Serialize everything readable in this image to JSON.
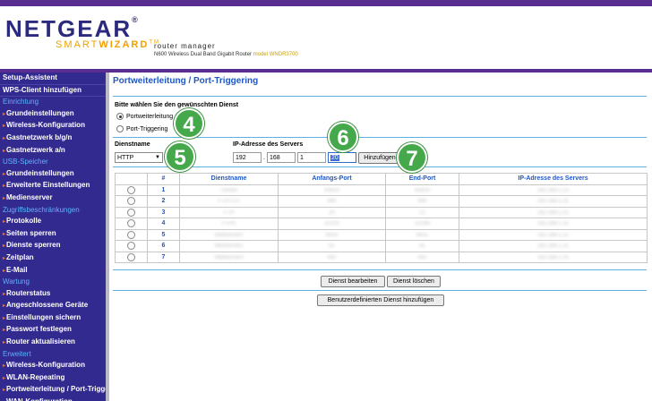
{
  "header": {
    "brand": "NETGEAR",
    "brand_tm": "®",
    "subbrand_smart": "SMART",
    "subbrand_wizard": "WIZARD",
    "subbrand_tm": "TM",
    "app_name": "router manager",
    "device": "N600 Wireless Dual Band Gigabit Router",
    "model_label": "model WNDR3700"
  },
  "sidebar": [
    {
      "kind": "top",
      "label": "Setup-Assistent"
    },
    {
      "kind": "top",
      "label": "WPS-Client hinzufügen"
    },
    {
      "kind": "section",
      "label": "Einrichtung"
    },
    {
      "kind": "sub",
      "label": "Grundeinstellungen"
    },
    {
      "kind": "sub",
      "label": "Wireless-Konfiguration"
    },
    {
      "kind": "sub",
      "label": "Gastnetzwerk b/g/n"
    },
    {
      "kind": "sub",
      "label": "Gastnetzwerk a/n"
    },
    {
      "kind": "section",
      "label": "USB-Speicher"
    },
    {
      "kind": "sub",
      "label": "Grundeinstellungen"
    },
    {
      "kind": "sub",
      "label": "Erweiterte Einstellungen"
    },
    {
      "kind": "sub",
      "label": "Medienserver"
    },
    {
      "kind": "section",
      "label": "Zugriffsbeschränkungen"
    },
    {
      "kind": "sub",
      "label": "Protokolle"
    },
    {
      "kind": "sub",
      "label": "Seiten sperren"
    },
    {
      "kind": "sub",
      "label": "Dienste sperren"
    },
    {
      "kind": "sub",
      "label": "Zeitplan"
    },
    {
      "kind": "sub",
      "label": "E-Mail"
    },
    {
      "kind": "section",
      "label": "Wartung"
    },
    {
      "kind": "sub",
      "label": "Routerstatus"
    },
    {
      "kind": "sub",
      "label": "Angeschlossene Geräte"
    },
    {
      "kind": "sub",
      "label": "Einstellungen sichern"
    },
    {
      "kind": "sub",
      "label": "Passwort festlegen"
    },
    {
      "kind": "sub",
      "label": "Router aktualisieren"
    },
    {
      "kind": "section",
      "label": "Erweitert"
    },
    {
      "kind": "sub",
      "label": "Wireless-Konfiguration"
    },
    {
      "kind": "sub",
      "label": "WLAN-Repeating"
    },
    {
      "kind": "sub2",
      "label": "Portweiterleitung / Port-Triggering"
    },
    {
      "kind": "sub",
      "label": "WAN-Konfiguration"
    }
  ],
  "main": {
    "title": "Portweiterleitung / Port-Triggering",
    "question": "Bitte wählen Sie den gewünschten Dienst",
    "option_forwarding": "Portweiterleitung",
    "option_triggering": "Port-Triggering",
    "service_label": "Dienstname",
    "service_value": "HTTP",
    "ip_label": "IP-Adresse des Servers",
    "ip": [
      "192",
      "168",
      "1",
      "20"
    ],
    "add_button": "Hinzufügen",
    "edit_button": "Dienst bearbeiten",
    "delete_button": "Dienst löschen",
    "custom_button": "Benutzerdefinierten Dienst hinzufügen"
  },
  "table": {
    "headers": [
      "#",
      "Dienstname",
      "Anfangs-Port",
      "End-Port",
      "IP-Adresse des Servers"
    ],
    "rows": [
      {
        "num": "1",
        "service": "Torrent",
        "start": "63829",
        "end": "63829",
        "ip": "192.168.1.21"
      },
      {
        "num": "2",
        "service": "FTP/TLS",
        "start": "990",
        "end": "990",
        "ip": "192.168.1.21"
      },
      {
        "num": "3",
        "service": "FTP",
        "start": "20",
        "end": "21",
        "ip": "192.168.1.21"
      },
      {
        "num": "4",
        "service": "FTPS",
        "start": "20100",
        "end": "20199",
        "ip": "192.168.1.21"
      },
      {
        "num": "5",
        "service": "Webserver1",
        "start": "8000",
        "end": "8001",
        "ip": "192.168.1.21"
      },
      {
        "num": "6",
        "service": "Webserver2",
        "start": "81",
        "end": "81",
        "ip": "192.168.1.21"
      },
      {
        "num": "7",
        "service": "Webserver3",
        "start": "443",
        "end": "443",
        "ip": "192.168.1.21"
      }
    ]
  },
  "callouts": [
    "4",
    "5",
    "6",
    "7"
  ]
}
